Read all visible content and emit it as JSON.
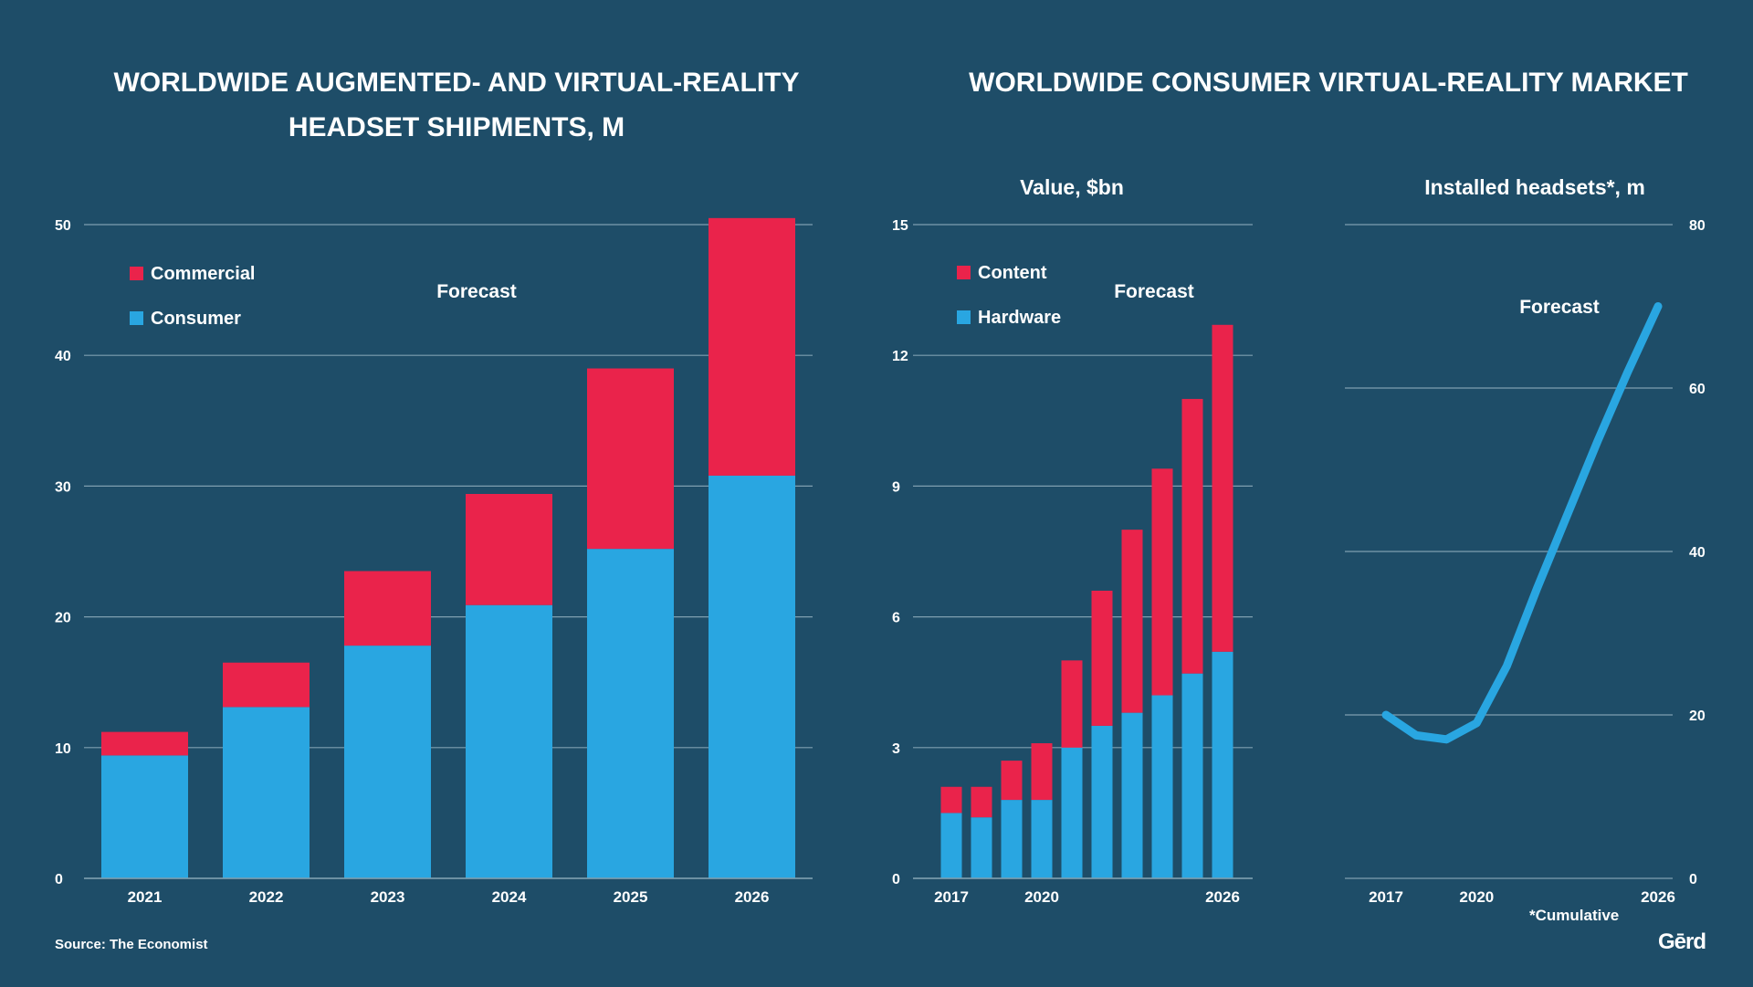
{
  "left_title_line1": "WORLDWIDE AUGMENTED- AND VIRTUAL-REALITY",
  "left_title_line2": "HEADSET SHIPMENTS, M",
  "right_title": "WORLDWIDE CONSUMER VIRTUAL-REALITY MARKET",
  "source": "Source: The Economist",
  "footnote": "*Cumulative",
  "logo": "Gērd",
  "colors": {
    "background": "#1e4d68",
    "blue": "#29a6e1",
    "red": "#ea234b",
    "grid": "#7f9fb0"
  },
  "chart_data": [
    {
      "type": "bar",
      "stacked": true,
      "title": "WORLDWIDE AUGMENTED- AND VIRTUAL-REALITY HEADSET SHIPMENTS, M",
      "categories": [
        "2021",
        "2022",
        "2023",
        "2024",
        "2025",
        "2026"
      ],
      "series": [
        {
          "name": "Consumer",
          "color": "#29a6e1",
          "values": [
            9.4,
            13.1,
            17.8,
            20.9,
            25.2,
            30.8
          ]
        },
        {
          "name": "Commercial",
          "color": "#ea234b",
          "values": [
            1.8,
            3.4,
            5.7,
            8.5,
            13.8,
            19.7
          ]
        }
      ],
      "yticks": [
        0,
        10,
        20,
        30,
        40,
        50
      ],
      "ylim": [
        0,
        50
      ],
      "annotation": "Forecast",
      "legend": "top-left"
    },
    {
      "type": "bar",
      "stacked": true,
      "title": "Value, $bn",
      "categories": [
        "2017",
        "2018",
        "2019",
        "2020",
        "2021",
        "2022",
        "2023",
        "2024",
        "2025",
        "2026"
      ],
      "xtick_labels": [
        "2017",
        "2020",
        "2026"
      ],
      "series": [
        {
          "name": "Hardware",
          "color": "#29a6e1",
          "values": [
            1.5,
            1.4,
            1.8,
            1.8,
            3.0,
            3.5,
            3.8,
            4.2,
            4.7,
            5.2
          ]
        },
        {
          "name": "Content",
          "color": "#ea234b",
          "values": [
            0.6,
            0.7,
            0.9,
            1.3,
            2.0,
            3.1,
            4.2,
            5.2,
            6.3,
            7.5
          ]
        }
      ],
      "yticks": [
        0,
        3,
        6,
        9,
        12,
        15
      ],
      "ylim": [
        0,
        15
      ],
      "annotation": "Forecast",
      "legend": "top-left"
    },
    {
      "type": "line",
      "title": "Installed headsets*, m",
      "x": [
        2017,
        2018,
        2019,
        2020,
        2021,
        2022,
        2023,
        2024,
        2025,
        2026
      ],
      "series": [
        {
          "name": "Installed headsets",
          "color": "#29a6e1",
          "values": [
            20,
            17.5,
            17,
            19,
            26,
            35.5,
            44.5,
            53.5,
            62,
            70
          ]
        }
      ],
      "xtick_labels": [
        "2017",
        "2020",
        "2026"
      ],
      "yticks": [
        0,
        20,
        40,
        60,
        80
      ],
      "ylim": [
        0,
        80
      ],
      "annotation": "Forecast",
      "yaxis_side": "right"
    }
  ]
}
